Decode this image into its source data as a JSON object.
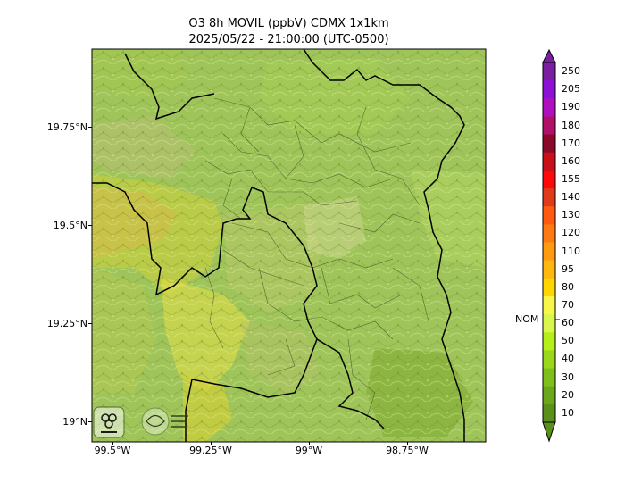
{
  "title": {
    "line1": "O3 8h MOVIL (ppbV) CDMX 1x1km",
    "line2": "2025/05/22 - 21:00:00 (UTC-0500)"
  },
  "axes": {
    "lat_labels": [
      "19.75°N",
      "19.5°N",
      "19.25°N",
      "19°N"
    ],
    "lon_labels": [
      "99.5°W",
      "99.25°W",
      "99°W",
      "98.75°W"
    ]
  },
  "colorbar": {
    "labels": [
      "250",
      "205",
      "190",
      "180",
      "170",
      "160",
      "155",
      "140",
      "130",
      "120",
      "110",
      "95",
      "80",
      "70",
      "60",
      "50",
      "40",
      "30",
      "20",
      "10"
    ],
    "colors": [
      "#7b1fa2",
      "#8e0fd6",
      "#b00fc0",
      "#b0106a",
      "#8b0a2a",
      "#c8101a",
      "#ff0a0a",
      "#e03a1a",
      "#ff5a10",
      "#ff7a10",
      "#ff9b10",
      "#ffb810",
      "#ffd600",
      "#f7f74a",
      "#d8f74a",
      "#b5ef1a",
      "#9ad61a",
      "#7fbf1a",
      "#6aa81a",
      "#5a901a"
    ],
    "nom_label": "NOM"
  },
  "map": {
    "base_color": "#9fc55a",
    "logos": [
      "SEDEMA logo",
      "Calidad del aire CDMX seal"
    ]
  }
}
